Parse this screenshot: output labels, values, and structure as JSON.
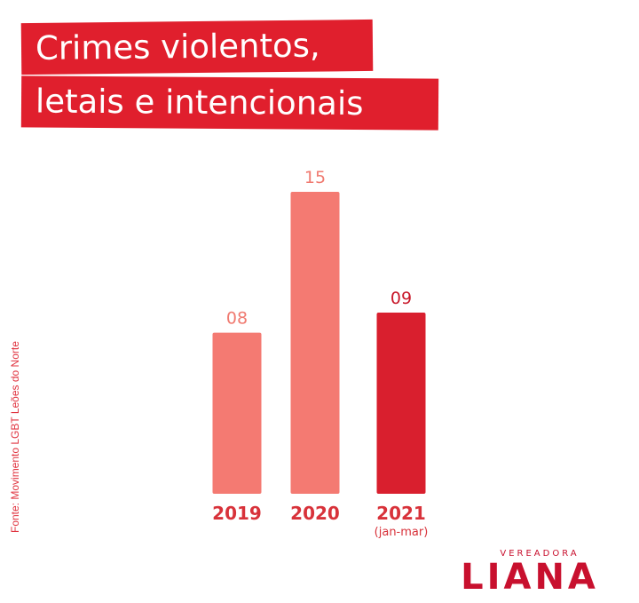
{
  "title_lines": [
    "Crimes violentos,",
    "letais e intencionais"
  ],
  "chart_data": {
    "type": "bar",
    "categories": [
      "2019",
      "2020",
      "2021"
    ],
    "category_sublabels": [
      "",
      "",
      "(jan-mar)"
    ],
    "values": [
      8,
      15,
      9
    ],
    "value_labels": [
      "08",
      "15",
      "09"
    ],
    "ylim": [
      0,
      15
    ],
    "grid": false,
    "colors": [
      "#f47a72",
      "#f47a72",
      "#d91f2e"
    ],
    "label_colors": [
      "#f07a70",
      "#f07a70",
      "#c8182a"
    ]
  },
  "source": "Fonte: Movimento LGBT Leões do Norte",
  "brand": {
    "top": "VEREADORA",
    "name": "LIANA"
  }
}
